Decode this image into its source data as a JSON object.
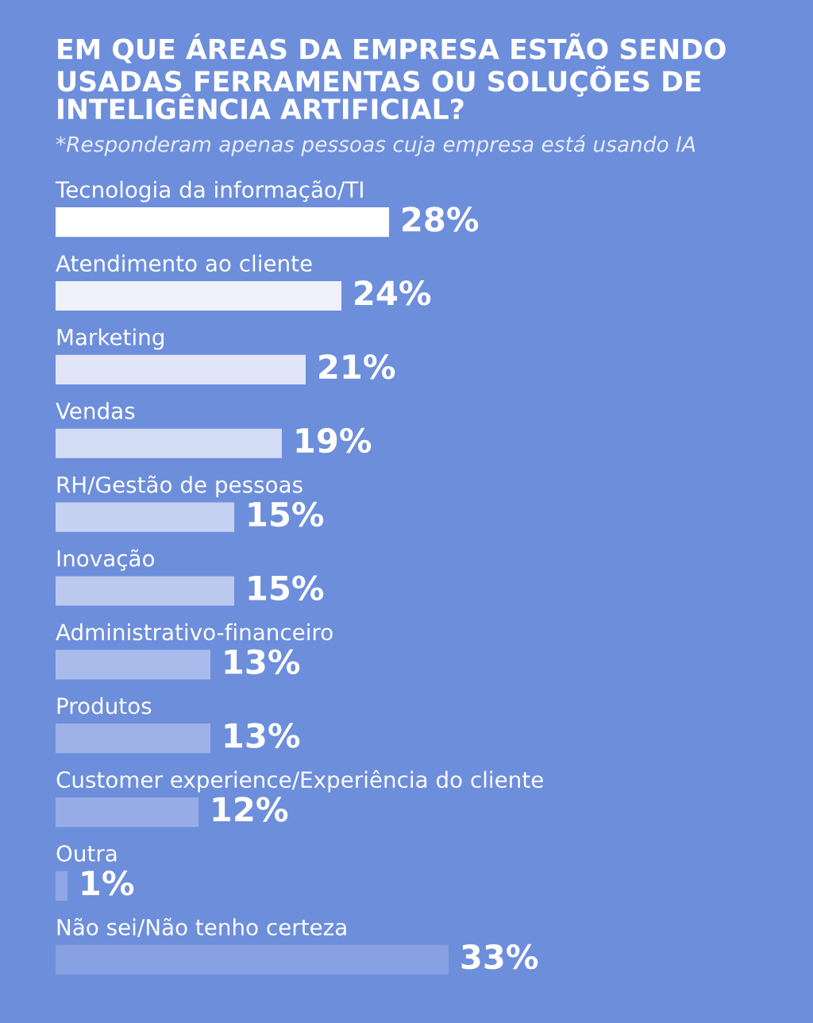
{
  "chart_data": {
    "type": "bar",
    "orientation": "horizontal",
    "title": "EM QUE ÁREAS DA EMPRESA ESTÃO SENDO\nUSADAS FERRAMENTAS OU SOLUÇÕES DE\nINTELIGÊNCIA ARTIFICIAL?",
    "subtitle": "*Responderam apenas pessoas cuja empresa está usando IA",
    "categories": [
      "Tecnologia da informação/TI",
      "Atendimento ao cliente",
      "Marketing",
      "Vendas",
      "RH/Gestão de pessoas",
      "Inovação",
      "Administrativo-financeiro",
      "Produtos",
      "Customer experience/Experiência do cliente",
      "Outra",
      "Não sei/Não tenho certeza"
    ],
    "values": [
      28,
      24,
      21,
      19,
      15,
      15,
      13,
      13,
      12,
      1,
      33
    ],
    "colors": [
      "#ffffff",
      "#eff2fb",
      "#e0e6f8",
      "#d3dcf5",
      "#c6d2f2",
      "#bcc9ef",
      "#a9bbeb",
      "#9fb2e8",
      "#97ace7",
      "#8fa7e6",
      "#88a1e3"
    ],
    "value_labels": [
      "28%",
      "24%",
      "21%",
      "19%",
      "15%",
      "15%",
      "13%",
      "13%",
      "12%",
      "1%",
      "33%"
    ],
    "tick_labels": false,
    "legend": false
  }
}
